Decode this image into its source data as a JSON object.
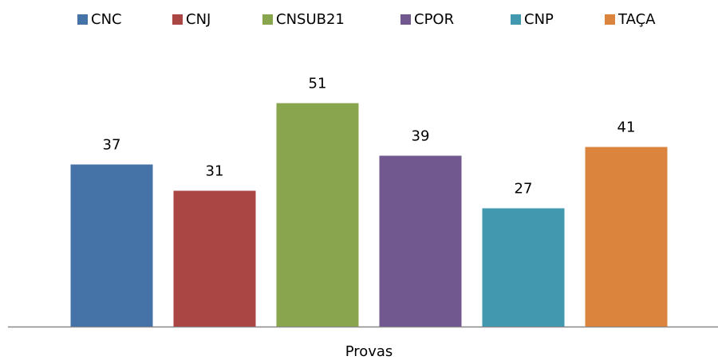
{
  "chart_data": {
    "type": "bar",
    "categories": [
      "Provas"
    ],
    "series": [
      {
        "name": "CNC",
        "color": "#4572a7",
        "values": [
          37
        ]
      },
      {
        "name": "CNJ",
        "color": "#aa4643",
        "values": [
          31
        ]
      },
      {
        "name": "CNSUB21",
        "color": "#89a54e",
        "values": [
          51
        ]
      },
      {
        "name": "CPOR",
        "color": "#71588f",
        "values": [
          39
        ]
      },
      {
        "name": "CNP",
        "color": "#4198af",
        "values": [
          27
        ]
      },
      {
        "name": "TAÇA",
        "color": "#db843d",
        "values": [
          41
        ]
      }
    ],
    "ylim": [
      0,
      60
    ],
    "grid": false,
    "legend": "top"
  }
}
